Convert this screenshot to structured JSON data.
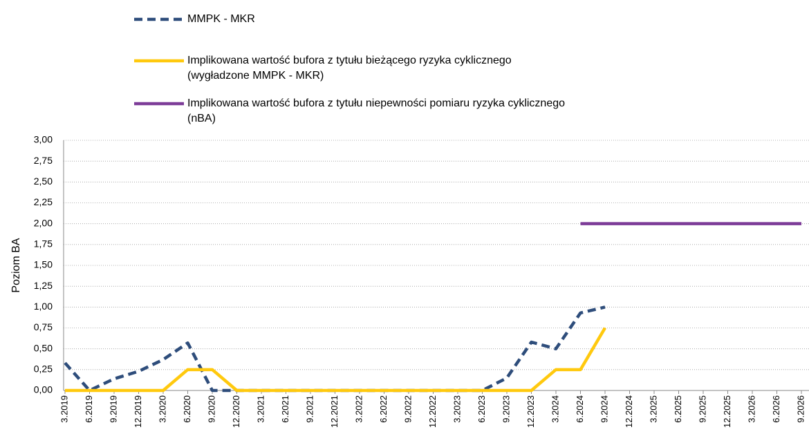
{
  "chart_data": {
    "type": "line",
    "y_label": "Poziom BA",
    "categories": [
      "3.2019",
      "6.2019",
      "9.2019",
      "12.2019",
      "3.2020",
      "6.2020",
      "9.2020",
      "12.2020",
      "3.2021",
      "6.2021",
      "9.2021",
      "12.2021",
      "3.2022",
      "6.2022",
      "9.2022",
      "12.2022",
      "3.2023",
      "6.2023",
      "9.2023",
      "12.2023",
      "3.2024",
      "6.2024",
      "9.2024",
      "12.2024",
      "3.2025",
      "6.2025",
      "9.2025",
      "12.2025",
      "3.2026",
      "6.2026",
      "9.2026"
    ],
    "series": [
      {
        "name": "MMPK - MKR",
        "color": "#2e4d7b",
        "dashed": true,
        "values": [
          0.33,
          0,
          0.14,
          0.23,
          0.37,
          0.57,
          0,
          0,
          0,
          0,
          0,
          0,
          0,
          0,
          0,
          0,
          0,
          0,
          0.15,
          0.58,
          0.5,
          0.93,
          1.0,
          null,
          null,
          null,
          null,
          null,
          null,
          null,
          null
        ]
      },
      {
        "name": "Implikowana wartość bufora z tytułu bieżącego ryzyka cyklicznego (wygładzone MMPK - MKR)",
        "color": "#ffc90e",
        "dashed": false,
        "values": [
          0,
          0,
          0,
          0,
          0,
          0.25,
          0.25,
          0,
          0,
          0,
          0,
          0,
          0,
          0,
          0,
          0,
          0,
          0,
          0,
          0,
          0.25,
          0.25,
          0.75,
          null,
          null,
          null,
          null,
          null,
          null,
          null,
          null
        ]
      },
      {
        "name": "Implikowana wartość bufora z tytułu niepewności pomiaru ryzyka cyklicznego (nBA)",
        "color": "#7d3c98",
        "dashed": false,
        "values": [
          null,
          null,
          null,
          null,
          null,
          null,
          null,
          null,
          null,
          null,
          null,
          null,
          null,
          null,
          null,
          null,
          null,
          null,
          null,
          null,
          null,
          2,
          2,
          2,
          2,
          2,
          2,
          2,
          2,
          2,
          2
        ]
      }
    ],
    "ylim": [
      0,
      3
    ],
    "yticks": [
      {
        "value": 0,
        "label": "0,00"
      },
      {
        "value": 0.25,
        "label": "0,25"
      },
      {
        "value": 0.5,
        "label": "0,50"
      },
      {
        "value": 0.75,
        "label": "0,75"
      },
      {
        "value": 1,
        "label": "1,00"
      },
      {
        "value": 1.25,
        "label": "1,25"
      },
      {
        "value": 1.5,
        "label": "1,50"
      },
      {
        "value": 1.75,
        "label": "1,75"
      },
      {
        "value": 2,
        "label": "2,00"
      },
      {
        "value": 2.25,
        "label": "2,25"
      },
      {
        "value": 2.5,
        "label": "2,50"
      },
      {
        "value": 2.75,
        "label": "2,75"
      },
      {
        "value": 3,
        "label": "3,00"
      }
    ],
    "grid": true
  }
}
